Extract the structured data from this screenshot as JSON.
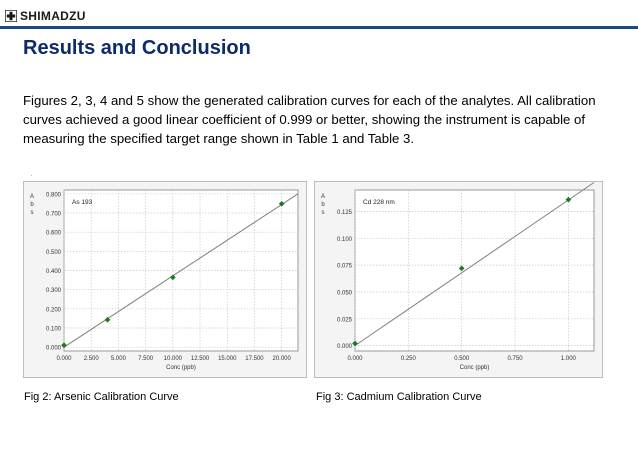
{
  "header": {
    "logo_text": "SHIMADZU",
    "logo_icon": "shimadzu-cross-logo",
    "title": "Results and Conclusion"
  },
  "body": {
    "paragraph": "Figures 2, 3, 4 and 5 show the generated calibration curves for each of the analytes. All calibration curves achieved a good linear coefficient of 0.999 or better, showing the instrument is capable of measuring the specified target range shown in Table 1 and Table 3."
  },
  "colors": {
    "title": "#0d2a6b",
    "rule": "#1a4a8a",
    "point": "#1f7a1f",
    "line": "#7f7f7f",
    "chart_bg": "#f4f4f4"
  },
  "chart_data": [
    {
      "type": "scatter",
      "annotation": "As 193",
      "xlabel": "Conc (ppb)",
      "ylabel": "Abs",
      "x_ticks": [
        "0.000",
        "2.500",
        "5.000",
        "7.500",
        "10.000",
        "12.500",
        "15.000",
        "17.500",
        "20.000"
      ],
      "y_ticks": [
        "0.000",
        "0.100",
        "0.200",
        "0.300",
        "0.400",
        "0.500",
        "0.600",
        "0.700",
        "0.800"
      ],
      "xlim": [
        0,
        21.5
      ],
      "ylim": [
        -0.02,
        0.82
      ],
      "grid": true,
      "points": [
        {
          "x": 0,
          "y": 0.01
        },
        {
          "x": 4,
          "y": 0.143
        },
        {
          "x": 10,
          "y": 0.364
        },
        {
          "x": 20,
          "y": 0.748
        }
      ],
      "fit_line": [
        {
          "x": 0,
          "y": 0.0
        },
        {
          "x": 21.5,
          "y": 0.8
        }
      ],
      "caption": "Fig 2: Arsenic Calibration Curve"
    },
    {
      "type": "scatter",
      "annotation": "Cd 228 nm",
      "xlabel": "Conc (ppb)",
      "ylabel": "Abs",
      "x_ticks": [
        "0.000",
        "0.250",
        "0.500",
        "0.750",
        "1.000"
      ],
      "y_ticks": [
        "0.000",
        "0.025",
        "0.050",
        "0.075",
        "0.100",
        "0.125"
      ],
      "xlim": [
        0,
        1.12
      ],
      "ylim": [
        -0.005,
        0.145
      ],
      "grid": true,
      "points": [
        {
          "x": 0,
          "y": 0.002
        },
        {
          "x": 0.5,
          "y": 0.072
        },
        {
          "x": 1.0,
          "y": 0.136
        }
      ],
      "fit_line": [
        {
          "x": 0,
          "y": 0.0
        },
        {
          "x": 1.12,
          "y": 0.152
        }
      ],
      "caption": "Fig 3: Cadmium Calibration Curve"
    }
  ]
}
